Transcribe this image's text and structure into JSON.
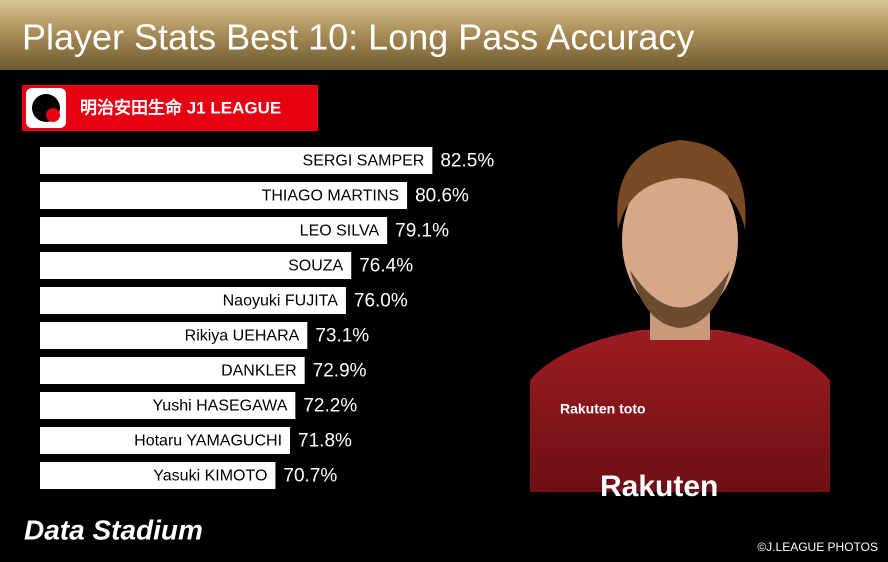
{
  "chart_data": {
    "type": "bar",
    "orientation": "horizontal",
    "title": "Player Stats Best 10: Long Pass Accuracy",
    "categories": [
      "SERGI SAMPER",
      "THIAGO MARTINS",
      "LEO SILVA",
      "SOUZA",
      "Naoyuki FUJITA",
      "Rikiya UEHARA",
      "DANKLER",
      "Yushi HASEGAWA",
      "Hotaru YAMAGUCHI",
      "Yasuki KIMOTO"
    ],
    "values": [
      82.5,
      80.6,
      79.1,
      76.4,
      76.0,
      73.1,
      72.9,
      72.2,
      71.8,
      70.7
    ],
    "value_labels": [
      "82.5%",
      "80.6%",
      "79.1%",
      "76.4%",
      "76.0%",
      "73.1%",
      "72.9%",
      "72.2%",
      "71.8%",
      "70.7%"
    ],
    "color": "#ffffff",
    "xlim": [
      53,
      83
    ]
  },
  "logo": {
    "text": "明治安田生命 J1 LEAGUE"
  },
  "brand": "Data Stadium",
  "credit": "©J.LEAGUE PHOTOS"
}
